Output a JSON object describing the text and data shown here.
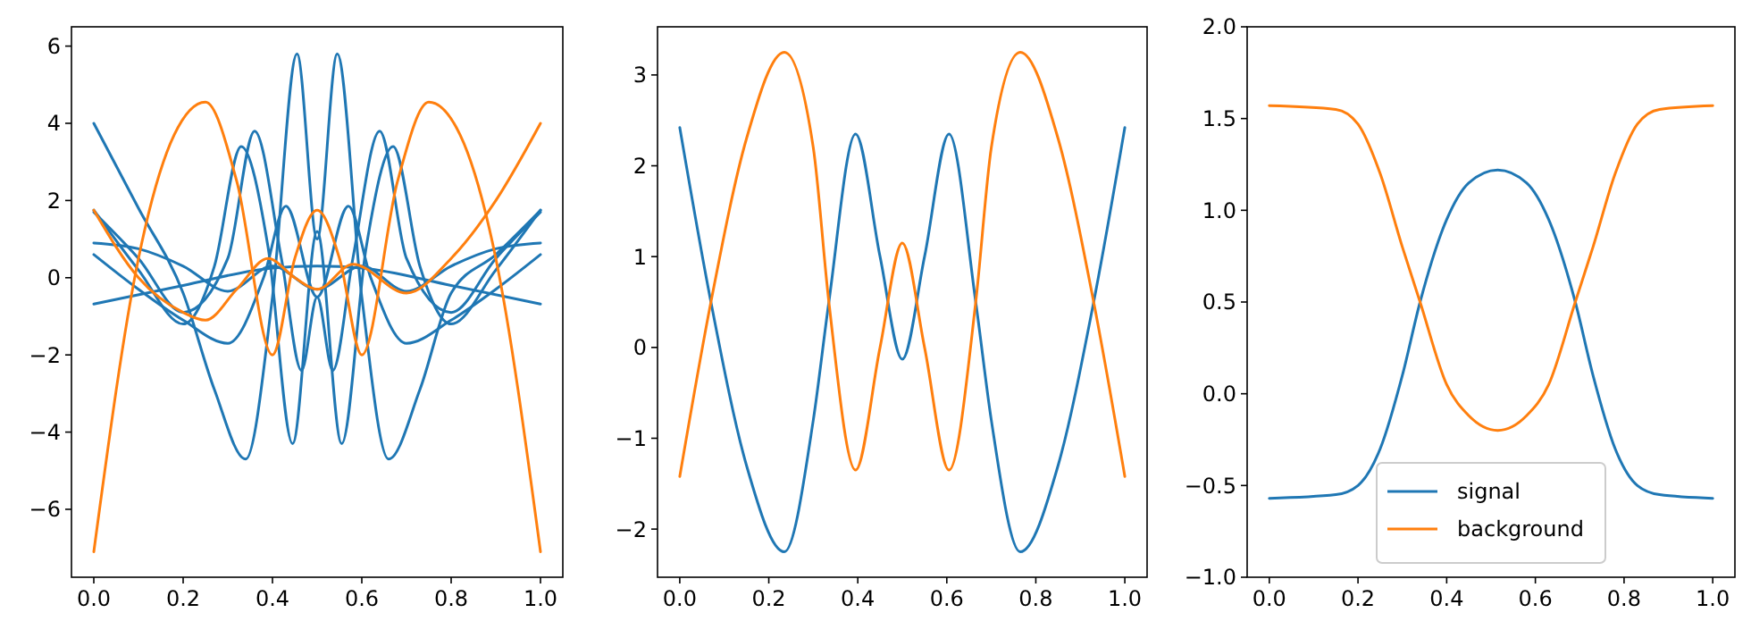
{
  "chart_data": [
    {
      "type": "line",
      "xlim": [
        -0.05,
        1.05
      ],
      "ylim": [
        -7.76,
        6.5
      ],
      "xticks": [
        {
          "value": 0,
          "label": "0.0"
        },
        {
          "value": 0.2,
          "label": "0.2"
        },
        {
          "value": 0.4,
          "label": "0.4"
        },
        {
          "value": 0.6,
          "label": "0.6"
        },
        {
          "value": 0.8,
          "label": "0.8"
        },
        {
          "value": 1,
          "label": "1.0"
        }
      ],
      "yticks": [
        {
          "value": -6,
          "label": "−6"
        },
        {
          "value": -4,
          "label": "−4"
        },
        {
          "value": -2,
          "label": "−2"
        },
        0,
        2,
        4,
        6
      ],
      "series": [
        {
          "color": "#1f77b4",
          "x": [
            0,
            0.1,
            0.2,
            0.27,
            0.34,
            0.4,
            0.455,
            0.5,
            0.545,
            0.6,
            0.66,
            0.73,
            0.8,
            0.9,
            1
          ],
          "values": [
            4.0,
            1.8,
            -0.4,
            -2.9,
            -4.7,
            -0.5,
            5.8,
            1.0,
            5.8,
            -0.5,
            -4.7,
            -2.9,
            -0.4,
            0.6,
            1.75
          ]
        },
        {
          "color": "#1f77b4",
          "x": [
            0,
            0.1,
            0.2,
            0.27,
            0.33,
            0.39,
            0.445,
            0.5,
            0.555,
            0.61,
            0.67,
            0.73,
            0.8,
            0.9,
            1
          ],
          "values": [
            1.75,
            0.2,
            -1.2,
            0.3,
            3.4,
            0.8,
            -4.3,
            1.2,
            -4.3,
            0.8,
            3.4,
            0.3,
            -1.2,
            0.2,
            1.75
          ]
        },
        {
          "color": "#1f77b4",
          "x": [
            0,
            0.1,
            0.2,
            0.3,
            0.36,
            0.42,
            0.465,
            0.5,
            0.535,
            0.58,
            0.64,
            0.7,
            0.8,
            0.9,
            1
          ],
          "values": [
            1.7,
            0.5,
            -0.9,
            0.5,
            3.8,
            0.5,
            -2.4,
            -0.5,
            -2.4,
            0.5,
            3.8,
            0.5,
            -0.9,
            0.5,
            1.7
          ]
        },
        {
          "color": "#1f77b4",
          "x": [
            0,
            0.1,
            0.2,
            0.3,
            0.38,
            0.43,
            0.5,
            0.57,
            0.62,
            0.7,
            0.8,
            0.9,
            1
          ],
          "values": [
            0.6,
            -0.3,
            -1.1,
            -1.7,
            0,
            1.85,
            -0.5,
            1.85,
            0,
            -1.7,
            -1.1,
            -0.3,
            0.6
          ]
        },
        {
          "color": "#1f77b4",
          "x": [
            0,
            0.1,
            0.2,
            0.3,
            0.4,
            0.5,
            0.6,
            0.7,
            0.8,
            0.9,
            1
          ],
          "values": [
            0.9,
            0.75,
            0.3,
            -0.35,
            0.3,
            -0.3,
            0.3,
            -0.35,
            0.3,
            0.75,
            0.9
          ]
        },
        {
          "color": "#1f77b4",
          "x": [
            0,
            0.2,
            0.4,
            0.5,
            0.6,
            0.8,
            1
          ],
          "values": [
            -0.68,
            -0.2,
            0.25,
            0.3,
            0.25,
            -0.2,
            -0.68
          ]
        },
        {
          "color": "#ff7f0e",
          "x": [
            0,
            0.1,
            0.18,
            0.25,
            0.32,
            0.4,
            0.45,
            0.5,
            0.55,
            0.6,
            0.68,
            0.75,
            0.82,
            0.9,
            1
          ],
          "values": [
            -7.1,
            0.5,
            3.7,
            4.55,
            2.5,
            -2.0,
            0.5,
            1.75,
            0.5,
            -2.0,
            2.5,
            4.55,
            3.7,
            0.5,
            -7.1
          ]
        },
        {
          "color": "#ff7f0e",
          "x": [
            0,
            0.1,
            0.2,
            0.25,
            0.32,
            0.39,
            0.45,
            0.5,
            0.58,
            0.7,
            0.8,
            0.9,
            1
          ],
          "values": [
            1.75,
            0.0,
            -0.9,
            -1.1,
            -0.3,
            0.5,
            0.0,
            -0.3,
            0.35,
            -0.4,
            0.5,
            2.0,
            4.0
          ]
        }
      ]
    },
    {
      "type": "line",
      "xlim": [
        -0.05,
        1.05
      ],
      "ylim": [
        -2.53,
        3.53
      ],
      "xticks": [
        {
          "value": 0,
          "label": "0.0"
        },
        {
          "value": 0.2,
          "label": "0.2"
        },
        {
          "value": 0.4,
          "label": "0.4"
        },
        {
          "value": 0.6,
          "label": "0.6"
        },
        {
          "value": 0.8,
          "label": "0.8"
        },
        {
          "value": 1,
          "label": "1.0"
        }
      ],
      "yticks": [
        {
          "value": -2,
          "label": "−2"
        },
        {
          "value": -1,
          "label": "−1"
        },
        0,
        1,
        2,
        3
      ],
      "series": [
        {
          "color": "#1f77b4",
          "x": [
            0,
            0.07,
            0.15,
            0.235,
            0.3,
            0.335,
            0.395,
            0.45,
            0.5,
            0.55,
            0.605,
            0.665,
            0.7,
            0.765,
            0.85,
            0.93,
            1
          ],
          "values": [
            2.42,
            0.5,
            -1.3,
            -2.25,
            -0.8,
            0.5,
            2.35,
            1.0,
            -0.13,
            1.0,
            2.35,
            0.5,
            -0.8,
            -2.25,
            -1.3,
            0.5,
            2.42
          ]
        },
        {
          "color": "#ff7f0e",
          "x": [
            0,
            0.07,
            0.15,
            0.235,
            0.3,
            0.335,
            0.395,
            0.45,
            0.5,
            0.55,
            0.605,
            0.665,
            0.7,
            0.765,
            0.85,
            0.93,
            1
          ],
          "values": [
            -1.42,
            0.5,
            2.3,
            3.25,
            2.2,
            0.5,
            -1.35,
            0.0,
            1.15,
            0.0,
            -1.35,
            0.5,
            2.2,
            3.25,
            2.3,
            0.5,
            -1.42
          ]
        }
      ]
    },
    {
      "type": "line",
      "xlim": [
        -0.05,
        1.05
      ],
      "ylim": [
        -1,
        2
      ],
      "legend": "bottom",
      "xticks": [
        {
          "value": 0,
          "label": "0.0"
        },
        {
          "value": 0.2,
          "label": "0.2"
        },
        {
          "value": 0.4,
          "label": "0.4"
        },
        {
          "value": 0.6,
          "label": "0.6"
        },
        {
          "value": 0.8,
          "label": "0.8"
        },
        {
          "value": 1,
          "label": "1.0"
        }
      ],
      "yticks": [
        {
          "value": -1,
          "label": "−1.0"
        },
        {
          "value": -0.5,
          "label": "−0.5"
        },
        {
          "value": 0,
          "label": "0.0"
        },
        {
          "value": 0.5,
          "label": "0.5"
        },
        {
          "value": 1,
          "label": "1.0"
        },
        {
          "value": 1.5,
          "label": "1.5"
        },
        {
          "value": 2,
          "label": "2.0"
        }
      ],
      "series": [
        {
          "name": "signal",
          "color": "#1f77b4",
          "x": [
            0,
            0.15,
            0.2,
            0.25,
            0.3,
            0.34,
            0.4,
            0.45,
            0.515,
            0.58,
            0.63,
            0.69,
            0.73,
            0.78,
            0.83,
            0.88,
            1
          ],
          "values": [
            -0.57,
            -0.55,
            -0.5,
            -0.3,
            0.1,
            0.5,
            0.95,
            1.15,
            1.22,
            1.15,
            0.95,
            0.5,
            0.1,
            -0.3,
            -0.5,
            -0.55,
            -0.57
          ]
        },
        {
          "name": "background",
          "color": "#ff7f0e",
          "x": [
            0,
            0.15,
            0.2,
            0.25,
            0.3,
            0.34,
            0.4,
            0.45,
            0.515,
            0.58,
            0.63,
            0.69,
            0.73,
            0.78,
            0.83,
            0.88,
            1
          ],
          "values": [
            1.57,
            1.55,
            1.47,
            1.2,
            0.8,
            0.5,
            0.05,
            -0.12,
            -0.2,
            -0.12,
            0.05,
            0.5,
            0.8,
            1.2,
            1.47,
            1.55,
            1.57
          ]
        }
      ]
    }
  ]
}
